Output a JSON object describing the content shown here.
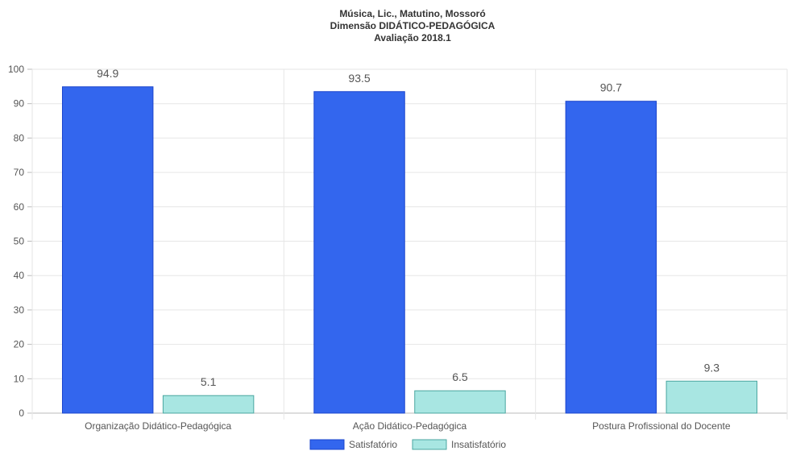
{
  "chart_data": {
    "type": "bar",
    "title_lines": [
      "Música, Lic., Matutino, Mossoró",
      "Dimensão DIDÁTICO-PEDAGÓGICA",
      "Avaliação 2018.1"
    ],
    "categories": [
      "Organização Didático-Pedagógica",
      "Ação Didático-Pedagógica",
      "Postura Profissional do Docente"
    ],
    "series": [
      {
        "name": "Satisfatório",
        "values": [
          94.9,
          93.5,
          90.7
        ],
        "color": "#3366ee",
        "stroke": "#1a44cc"
      },
      {
        "name": "Insatisfatório",
        "values": [
          5.1,
          6.5,
          9.3
        ],
        "color": "#a8e6e2",
        "stroke": "#4aa6a0"
      }
    ],
    "ylim": [
      0,
      100
    ],
    "yticks": [
      "0",
      "10",
      "20",
      "30",
      "40",
      "50",
      "60",
      "70",
      "80",
      "90",
      "100"
    ],
    "data_labels": [
      [
        "94.9",
        "93.5",
        "90.7"
      ],
      [
        "5.1",
        "6.5",
        "9.3"
      ]
    ],
    "grid": true,
    "legend": "bottom-center"
  }
}
